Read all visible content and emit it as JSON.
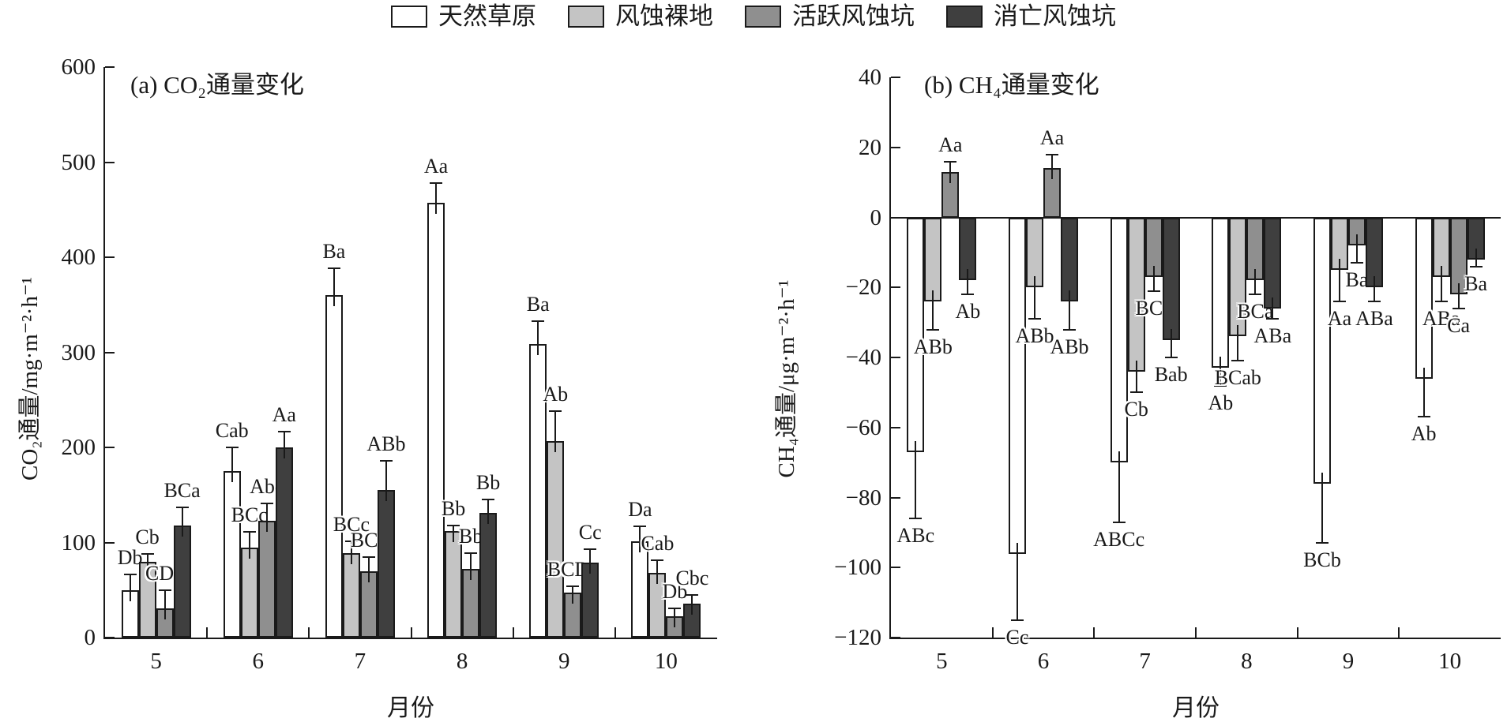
{
  "figure": {
    "legend": {
      "items": [
        {
          "label": "天然草原",
          "color": "#ffffff"
        },
        {
          "label": "风蚀裸地",
          "color": "#c4c4c4"
        },
        {
          "label": "活跃风蚀坑",
          "color": "#8f8f8f"
        },
        {
          "label": "消亡风蚀坑",
          "color": "#3f3f3f"
        }
      ]
    },
    "line_color": "#1a1a1a"
  },
  "chart_data": [
    {
      "type": "bar",
      "panel": "a",
      "title": "(a) CO₂通量变化",
      "ylabel": "CO₂通量/mg·m⁻²·h⁻¹",
      "xlabel": "月份",
      "ylim": [
        0,
        600
      ],
      "yticks": [
        0,
        100,
        200,
        300,
        400,
        500,
        600
      ],
      "categories": [
        "5",
        "6",
        "7",
        "8",
        "9",
        "10"
      ],
      "grid": false,
      "legend_position": "top-center",
      "series": [
        {
          "name": "天然草原",
          "color": "#ffffff",
          "values": [
            50,
            175,
            360,
            457,
            309,
            101
          ],
          "errors": [
            16,
            25,
            28,
            21,
            24,
            16
          ],
          "labels": [
            "Db",
            "Cab",
            "Ba",
            "Aa",
            "Ba",
            "Da"
          ]
        },
        {
          "name": "风蚀裸地",
          "color": "#c4c4c4",
          "values": [
            80,
            95,
            89,
            112,
            207,
            68
          ],
          "errors": [
            8,
            16,
            12,
            6,
            31,
            13
          ],
          "labels": [
            "Cb",
            "BCc",
            "BCc",
            "Bb",
            "Ab",
            "Cab"
          ]
        },
        {
          "name": "活跃风蚀坑",
          "color": "#8f8f8f",
          "values": [
            31,
            123,
            70,
            72,
            47,
            22
          ],
          "errors": [
            19,
            18,
            15,
            17,
            7,
            9
          ],
          "labels": [
            "CDb",
            "Abc",
            "BCc",
            "Bb",
            "BCDc",
            "Db"
          ]
        },
        {
          "name": "消亡风蚀坑",
          "color": "#3f3f3f",
          "values": [
            118,
            200,
            155,
            131,
            79,
            36
          ],
          "errors": [
            19,
            17,
            31,
            14,
            14,
            9
          ],
          "labels": [
            "BCa",
            "Aa",
            "ABb",
            "Bb",
            "Cc",
            "Cbc"
          ]
        }
      ]
    },
    {
      "type": "bar",
      "panel": "b",
      "title": "(b) CH₄通量变化",
      "ylabel": "CH₄通量/μg·m⁻²·h⁻¹",
      "xlabel": "月份",
      "ylim": [
        -120,
        40
      ],
      "yticks": [
        40,
        20,
        0,
        -20,
        -40,
        -60,
        -80,
        -100,
        -120
      ],
      "categories": [
        "5",
        "6",
        "7",
        "8",
        "9",
        "10"
      ],
      "grid": false,
      "legend_position": "top-center",
      "series": [
        {
          "name": "天然草原",
          "color": "#ffffff",
          "values": [
            -67,
            -96,
            -70,
            -43,
            -76,
            -46
          ],
          "errors": [
            19,
            19,
            17,
            5,
            17,
            11
          ],
          "labels": [
            "ABc",
            "Cc",
            "ABCc",
            "Ab",
            "BCb",
            "Ab"
          ]
        },
        {
          "name": "风蚀裸地",
          "color": "#c4c4c4",
          "values": [
            -24,
            -20,
            -44,
            -34,
            -15,
            -17
          ],
          "errors": [
            8,
            9,
            6,
            7,
            9,
            7
          ],
          "labels": [
            "ABb",
            "ABb",
            "Cb",
            "BCab",
            "Aa",
            "ABa"
          ]
        },
        {
          "name": "活跃风蚀坑",
          "color": "#8f8f8f",
          "values": [
            13,
            14,
            -17,
            -18,
            -8,
            -22
          ],
          "errors": [
            3,
            4,
            4,
            4,
            5,
            4
          ],
          "labels": [
            "Aa",
            "Aa",
            "BCa",
            "BCa",
            "Ba",
            "Ca"
          ]
        },
        {
          "name": "消亡风蚀坑",
          "color": "#3f3f3f",
          "values": [
            -18,
            -24,
            -35,
            -26,
            -20,
            -12
          ],
          "errors": [
            4,
            8,
            5,
            3,
            4,
            2
          ],
          "labels": [
            "Ab",
            "ABb",
            "Bab",
            "ABa",
            "ABa",
            "Ba"
          ]
        }
      ]
    }
  ]
}
